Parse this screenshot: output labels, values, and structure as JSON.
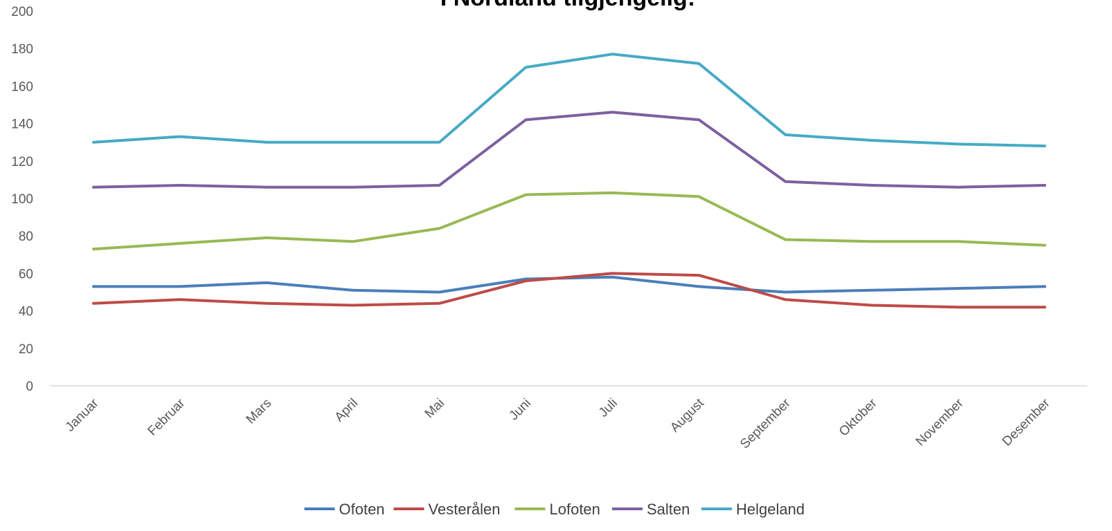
{
  "chart_data": {
    "type": "line",
    "title": "I Nordland tilgjengelig:",
    "categories": [
      "Januar",
      "Februar",
      "Mars",
      "April",
      "Mai",
      "Juni",
      "Juli",
      "August",
      "September",
      "Oktober",
      "November",
      "Desember"
    ],
    "ylim": [
      0,
      200
    ],
    "yticks": [
      0,
      20,
      40,
      60,
      80,
      100,
      120,
      140,
      160,
      180,
      200
    ],
    "gridlines": false,
    "legend_position": "bottom",
    "series": [
      {
        "name": "Ofoten",
        "color": "#4a7ebb",
        "values": [
          53,
          53,
          55,
          51,
          50,
          57,
          58,
          53,
          50,
          51,
          52,
          53
        ]
      },
      {
        "name": "Vesterålen",
        "color": "#be4b48",
        "values": [
          44,
          46,
          44,
          43,
          44,
          56,
          60,
          59,
          46,
          43,
          42,
          42
        ]
      },
      {
        "name": "Lofoten",
        "color": "#98b954",
        "values": [
          73,
          76,
          79,
          77,
          84,
          102,
          103,
          101,
          78,
          77,
          77,
          75
        ]
      },
      {
        "name": "Salten",
        "color": "#7d60a0",
        "values": [
          106,
          107,
          106,
          106,
          107,
          142,
          146,
          142,
          109,
          107,
          106,
          107
        ]
      },
      {
        "name": "Helgeland",
        "color": "#46aac5",
        "values": [
          130,
          133,
          130,
          130,
          130,
          170,
          177,
          172,
          134,
          131,
          129,
          128
        ]
      }
    ]
  }
}
